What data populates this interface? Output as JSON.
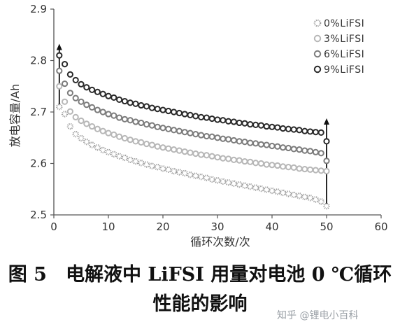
{
  "chart_data": {
    "type": "scatter",
    "xlabel": "循环次数/次",
    "ylabel": "放电容量/Ah",
    "xlim": [
      0,
      60
    ],
    "ylim": [
      2.5,
      2.9
    ],
    "xticks": [
      "0",
      "10",
      "20",
      "30",
      "40",
      "50",
      "60"
    ],
    "yticks": [
      "2.5",
      "2.6",
      "2.7",
      "2.8",
      "2.9"
    ],
    "grid": false,
    "legend_position": "top-right",
    "x": [
      1,
      2,
      3,
      4,
      5,
      6,
      7,
      8,
      9,
      10,
      11,
      12,
      13,
      14,
      15,
      16,
      17,
      18,
      19,
      20,
      21,
      22,
      23,
      24,
      25,
      26,
      27,
      28,
      29,
      30,
      31,
      32,
      33,
      34,
      35,
      36,
      37,
      38,
      39,
      40,
      41,
      42,
      43,
      44,
      45,
      46,
      47,
      48,
      49,
      50
    ],
    "series": [
      {
        "name": "0%LiFSI",
        "style": "dotted",
        "color": "#9a9a9a",
        "values": [
          2.71,
          2.696,
          2.672,
          2.657,
          2.649,
          2.642,
          2.636,
          2.631,
          2.626,
          2.622,
          2.618,
          2.614,
          2.611,
          2.607,
          2.604,
          2.601,
          2.598,
          2.595,
          2.593,
          2.59,
          2.588,
          2.585,
          2.583,
          2.581,
          2.578,
          2.576,
          2.574,
          2.572,
          2.569,
          2.567,
          2.565,
          2.563,
          2.561,
          2.559,
          2.557,
          2.555,
          2.553,
          2.551,
          2.549,
          2.547,
          2.545,
          2.543,
          2.541,
          2.539,
          2.537,
          2.535,
          2.533,
          2.53,
          2.526,
          2.517
        ]
      },
      {
        "name": "3%LiFSI",
        "style": "solid",
        "color": "#b7b7b7",
        "values": [
          2.75,
          2.72,
          2.701,
          2.69,
          2.683,
          2.677,
          2.672,
          2.667,
          2.663,
          2.659,
          2.656,
          2.652,
          2.649,
          2.646,
          2.643,
          2.641,
          2.638,
          2.636,
          2.633,
          2.631,
          2.629,
          2.627,
          2.625,
          2.623,
          2.621,
          2.619,
          2.617,
          2.616,
          2.614,
          2.612,
          2.61,
          2.609,
          2.607,
          2.606,
          2.604,
          2.603,
          2.601,
          2.6,
          2.598,
          2.597,
          2.596,
          2.594,
          2.593,
          2.592,
          2.59,
          2.589,
          2.588,
          2.587,
          2.586,
          2.585
        ]
      },
      {
        "name": "6%LiFSI",
        "style": "solid",
        "color": "#7c7c7c",
        "values": [
          2.78,
          2.755,
          2.737,
          2.727,
          2.72,
          2.714,
          2.709,
          2.704,
          2.7,
          2.696,
          2.693,
          2.689,
          2.686,
          2.684,
          2.681,
          2.679,
          2.676,
          2.674,
          2.671,
          2.669,
          2.667,
          2.665,
          2.663,
          2.661,
          2.659,
          2.657,
          2.655,
          2.653,
          2.652,
          2.65,
          2.648,
          2.647,
          2.645,
          2.643,
          2.642,
          2.64,
          2.639,
          2.637,
          2.636,
          2.634,
          2.633,
          2.631,
          2.63,
          2.628,
          2.627,
          2.625,
          2.624,
          2.622,
          2.62,
          2.605
        ]
      },
      {
        "name": "9%LiFSI",
        "style": "solid",
        "color": "#2a2a2a",
        "values": [
          2.81,
          2.793,
          2.773,
          2.762,
          2.754,
          2.748,
          2.743,
          2.739,
          2.735,
          2.731,
          2.728,
          2.724,
          2.721,
          2.718,
          2.716,
          2.713,
          2.711,
          2.708,
          2.706,
          2.704,
          2.702,
          2.7,
          2.698,
          2.696,
          2.694,
          2.692,
          2.69,
          2.689,
          2.687,
          2.685,
          2.684,
          2.682,
          2.681,
          2.679,
          2.678,
          2.676,
          2.675,
          2.674,
          2.672,
          2.671,
          2.67,
          2.668,
          2.667,
          2.666,
          2.665,
          2.663,
          2.662,
          2.661,
          2.66,
          2.643
        ]
      }
    ]
  },
  "caption": {
    "line1": "图 5　电解液中 LiFSI 用量对电池 0 ℃循环",
    "line2": "性能的影响"
  },
  "watermark": "知乎 @锂电小百科"
}
